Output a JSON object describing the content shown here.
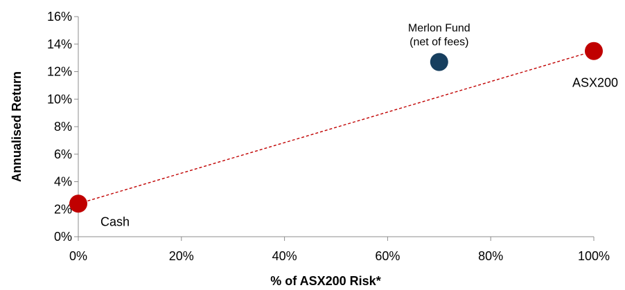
{
  "chart_data": {
    "type": "scatter",
    "xlabel": "% of ASX200 Risk*",
    "ylabel": "Annualised Return",
    "xlim": [
      0,
      100
    ],
    "ylim": [
      0,
      16
    ],
    "x_ticks": [
      "0%",
      "20%",
      "40%",
      "60%",
      "80%",
      "100%"
    ],
    "y_ticks": [
      "0%",
      "2%",
      "4%",
      "6%",
      "8%",
      "10%",
      "12%",
      "14%",
      "16%"
    ],
    "points": [
      {
        "label": "Cash",
        "x": 0,
        "y": 2.4,
        "color": "#c00000"
      },
      {
        "label": "ASX200",
        "x": 100,
        "y": 13.5,
        "color": "#c00000"
      },
      {
        "label_lines": [
          "Merlon Fund",
          "(net of fees)"
        ],
        "x": 70,
        "y": 12.7,
        "color": "#173f5f"
      }
    ],
    "trendline": {
      "from": {
        "x": 0,
        "y": 2.4
      },
      "to": {
        "x": 100,
        "y": 13.5
      },
      "color": "#c00000",
      "style": "dashed"
    },
    "grid": false,
    "legend": "none"
  }
}
